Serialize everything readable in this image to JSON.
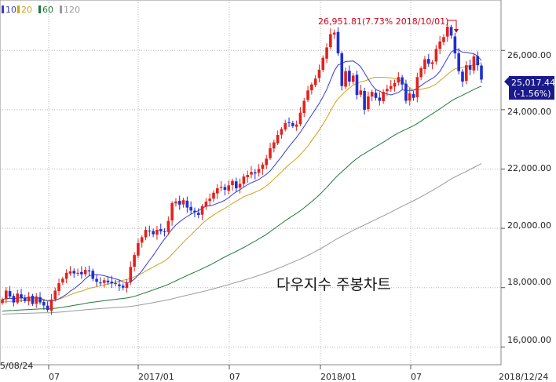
{
  "chart_data": {
    "type": "candlestick",
    "title": "다우지수 주봉차트",
    "legend": [
      "10",
      "20",
      "60",
      "120"
    ],
    "ma_colors": {
      "10": "#3b3bd6",
      "20": "#d4a017",
      "60": "#1f7a3a",
      "120": "#9a9a9a"
    },
    "up_color": "#e3211c",
    "down_color": "#1f2fd1",
    "x_axis_labels": [
      "5/08/24",
      "07",
      "2017/01",
      "07",
      "2018/01",
      "07",
      "2018/12/24"
    ],
    "y_ticks": [
      "16,000.00",
      "18,000.00",
      "20,000.00",
      "22,000.00",
      "24,000.00",
      "26,000.00"
    ],
    "y_tick_values": [
      16000,
      18000,
      20000,
      22000,
      24000,
      26000
    ],
    "ylim": [
      15400,
      27700
    ],
    "last_price": "25,017.44",
    "last_change": "(-1.56%)",
    "high_annotation": "26,951.81(7.73% 2018/10/01)",
    "weekly_closes": [
      17600,
      17900,
      17700,
      17500,
      17800,
      17650,
      17550,
      17700,
      17450,
      17700,
      17500,
      17400,
      17250,
      17600,
      17900,
      18150,
      18300,
      18500,
      18550,
      18480,
      18500,
      18450,
      18600,
      18550,
      18300,
      18200,
      18150,
      18250,
      18180,
      18150,
      18130,
      18050,
      18000,
      18150,
      18700,
      19100,
      19500,
      19700,
      19950,
      19900,
      19800,
      19950,
      19900,
      19900,
      20250,
      20850,
      20900,
      20800,
      20950,
      20700,
      20600,
      20550,
      20450,
      20750,
      20900,
      21000,
      21200,
      21350,
      21400,
      21300,
      21450,
      21600,
      21350,
      21500,
      21750,
      21800,
      21900,
      21850,
      22000,
      22150,
      22350,
      22700,
      22900,
      23150,
      23350,
      23550,
      23550,
      23450,
      23500,
      23900,
      24300,
      24650,
      24850,
      25050,
      25350,
      25750,
      26100,
      26550,
      26600,
      25900,
      24800,
      25300,
      24950,
      25150,
      24500,
      24650,
      24000,
      24450,
      24600,
      24400,
      24300,
      24600,
      24700,
      24800,
      24900,
      25100,
      24850,
      24300,
      24550,
      24400,
      25100,
      25400,
      25700,
      25550,
      25600,
      26050,
      26300,
      26450,
      26800,
      26500,
      25900,
      25300,
      24950,
      25500,
      25350,
      25800,
      25500,
      25017
    ]
  }
}
